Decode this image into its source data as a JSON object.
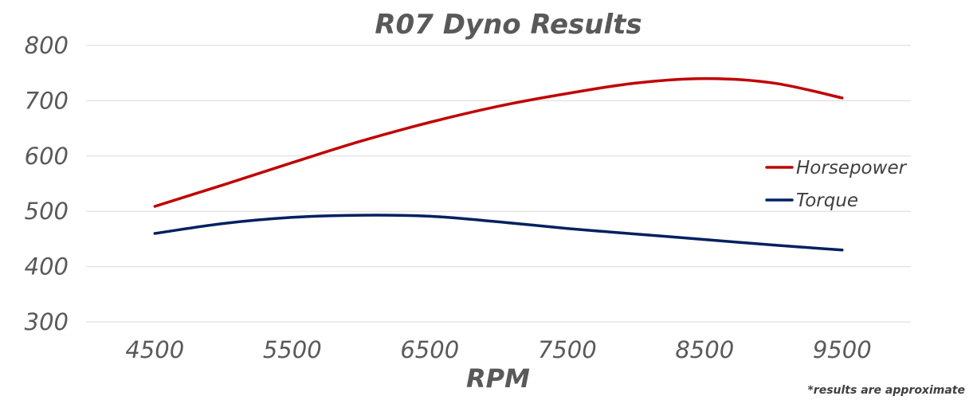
{
  "chart_data": {
    "type": "line",
    "title": "R07 Dyno Results",
    "xlabel": "RPM",
    "ylabel": "",
    "x": [
      4500,
      5000,
      5500,
      6000,
      6500,
      7000,
      7500,
      8000,
      8500,
      9000,
      9500
    ],
    "x_ticks": [
      "4500",
      "5500",
      "6500",
      "7500",
      "8500",
      "9500"
    ],
    "y_ticks": [
      "300",
      "400",
      "500",
      "600",
      "700",
      "800"
    ],
    "ylim": [
      300,
      800
    ],
    "xlim": [
      4000,
      10000
    ],
    "grid": true,
    "legend_position": "right",
    "series": [
      {
        "name": "Horsepower",
        "color": "#c00000",
        "values": [
          509,
          548,
          588,
          627,
          661,
          690,
          713,
          732,
          740,
          732,
          705
        ]
      },
      {
        "name": "Torque",
        "color": "#002060",
        "values": [
          460,
          478,
          489,
          493,
          491,
          481,
          469,
          459,
          449,
          439,
          430
        ]
      }
    ],
    "footnote": "*results are approximate"
  }
}
